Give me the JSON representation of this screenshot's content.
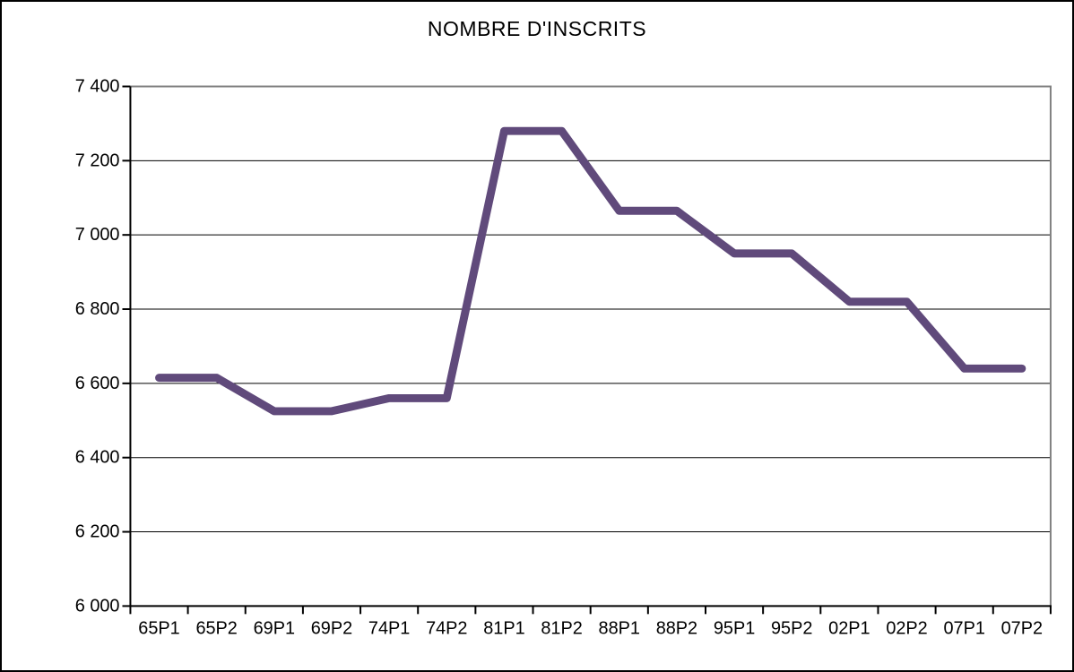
{
  "chart_data": {
    "type": "line",
    "title": "NOMBRE D'INSCRITS",
    "xlabel": "",
    "ylabel": "",
    "categories": [
      "65P1",
      "65P2",
      "69P1",
      "69P2",
      "74P1",
      "74P2",
      "81P1",
      "81P2",
      "88P1",
      "88P2",
      "95P1",
      "95P2",
      "02P1",
      "02P2",
      "07P1",
      "07P2"
    ],
    "series": [
      {
        "name": "Nombre d'inscrits",
        "values": [
          6615,
          6615,
          6525,
          6525,
          6560,
          6560,
          7280,
          7280,
          7065,
          7065,
          6950,
          6950,
          6820,
          6820,
          6640,
          6640
        ]
      }
    ],
    "ylim": [
      6000,
      7400
    ],
    "yticks": [
      6000,
      6200,
      6400,
      6600,
      6800,
      7000,
      7200,
      7400
    ],
    "ytick_labels": [
      "6 000",
      "6 200",
      "6 400",
      "6 600",
      "6 800",
      "7 000",
      "7 200",
      "7 400"
    ],
    "grid": "horizontal",
    "legend": "none",
    "colors": {
      "series_line": "#604a7b",
      "axis": "#000000",
      "gridline": "#000000",
      "plot_border": "#808080",
      "background": "#ffffff",
      "text": "#000000"
    }
  }
}
